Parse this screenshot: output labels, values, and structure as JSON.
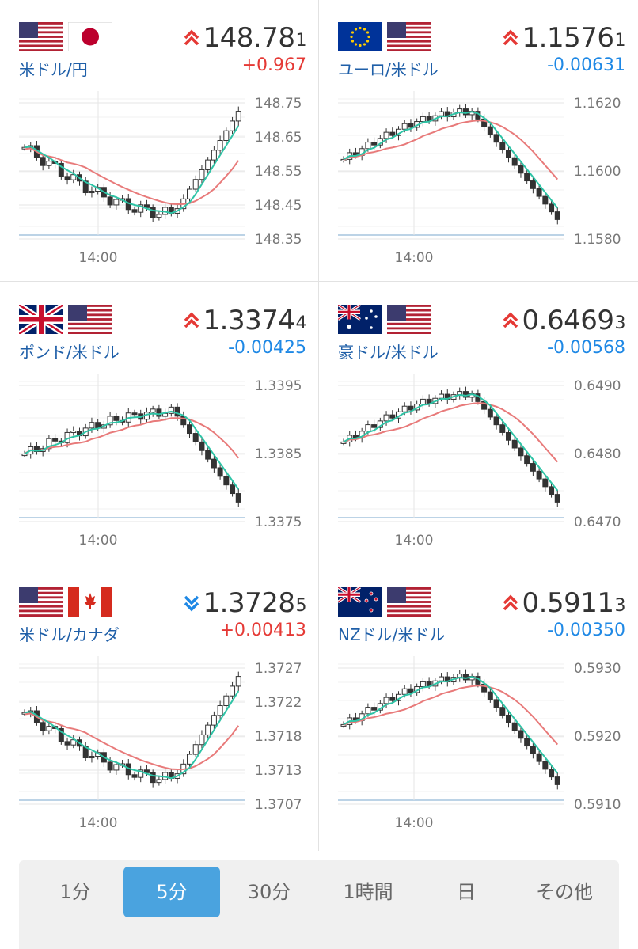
{
  "panels": [
    {
      "pair": "米ドル/円",
      "price": "148.78",
      "price_small": "1",
      "change": "+0.967",
      "direction": "up",
      "flags": [
        "us-flag",
        "japan-flag"
      ],
      "yticks": [
        "148.75",
        "148.65",
        "148.55",
        "148.45",
        "148.35"
      ],
      "xtick": "14:00"
    },
    {
      "pair": "ユーロ/米ドル",
      "price": "1.1576",
      "price_small": "1",
      "change": "-0.00631",
      "direction": "up",
      "flags": [
        "eu-flag",
        "us-flag"
      ],
      "yticks": [
        "1.1620",
        "1.1600",
        "1.1580"
      ],
      "xtick": "14:00"
    },
    {
      "pair": "ポンド/米ドル",
      "price": "1.3374",
      "price_small": "4",
      "change": "-0.00425",
      "direction": "up",
      "flags": [
        "uk-flag",
        "us-flag"
      ],
      "yticks": [
        "1.3395",
        "1.3385",
        "1.3375"
      ],
      "xtick": "14:00"
    },
    {
      "pair": "豪ドル/米ドル",
      "price": "0.6469",
      "price_small": "3",
      "change": "-0.00568",
      "direction": "up",
      "flags": [
        "australia-flag",
        "us-flag"
      ],
      "yticks": [
        "0.6490",
        "0.6480",
        "0.6470"
      ],
      "xtick": "14:00"
    },
    {
      "pair": "米ドル/カナダ",
      "price": "1.3728",
      "price_small": "5",
      "change": "+0.00413",
      "direction": "down",
      "flags": [
        "us-flag",
        "canada-flag"
      ],
      "yticks": [
        "1.3727",
        "1.3722",
        "1.3718",
        "1.3713",
        "1.3707"
      ],
      "xtick": "14:00"
    },
    {
      "pair": "NZドル/米ドル",
      "price": "0.5911",
      "price_small": "3",
      "change": "-0.00350",
      "direction": "up",
      "flags": [
        "nz-flag",
        "us-flag"
      ],
      "yticks": [
        "0.5930",
        "0.5920",
        "0.5910"
      ],
      "xtick": "14:00"
    }
  ],
  "tabs": [
    "1分",
    "5分",
    "30分",
    "1時間",
    "日",
    "その他"
  ],
  "active_tab": "5分",
  "colors": {
    "up": "#e53935",
    "down": "#1e88e5",
    "pair_text": "#1f5fa8",
    "fast_ma": "#2ec4a6",
    "slow_ma": "#e87a7a",
    "tab_active": "#4aa3df"
  }
}
